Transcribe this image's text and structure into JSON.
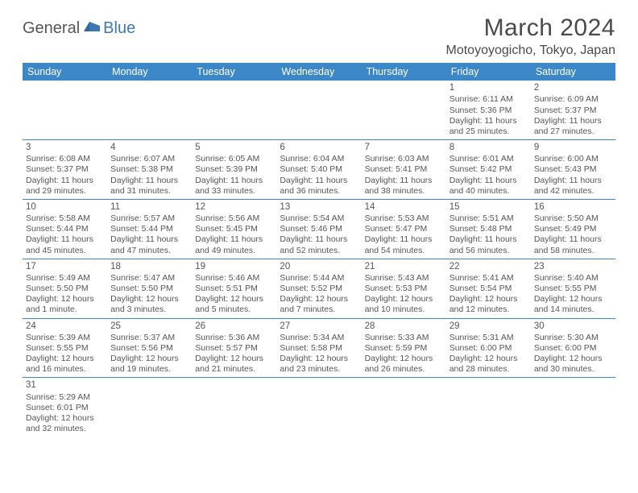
{
  "logo": {
    "text1": "General",
    "text2": "Blue"
  },
  "title": "March 2024",
  "location": "Motoyoyogicho, Tokyo, Japan",
  "colors": {
    "header_bg": "#3c87c7",
    "header_fg": "#ffffff",
    "border": "#3c87c7",
    "text": "#555555",
    "logo_blue": "#3d79b0"
  },
  "day_headers": [
    "Sunday",
    "Monday",
    "Tuesday",
    "Wednesday",
    "Thursday",
    "Friday",
    "Saturday"
  ],
  "weeks": [
    [
      null,
      null,
      null,
      null,
      null,
      {
        "n": "1",
        "sr": "Sunrise: 6:11 AM",
        "ss": "Sunset: 5:36 PM",
        "dl": "Daylight: 11 hours and 25 minutes."
      },
      {
        "n": "2",
        "sr": "Sunrise: 6:09 AM",
        "ss": "Sunset: 5:37 PM",
        "dl": "Daylight: 11 hours and 27 minutes."
      }
    ],
    [
      {
        "n": "3",
        "sr": "Sunrise: 6:08 AM",
        "ss": "Sunset: 5:37 PM",
        "dl": "Daylight: 11 hours and 29 minutes."
      },
      {
        "n": "4",
        "sr": "Sunrise: 6:07 AM",
        "ss": "Sunset: 5:38 PM",
        "dl": "Daylight: 11 hours and 31 minutes."
      },
      {
        "n": "5",
        "sr": "Sunrise: 6:05 AM",
        "ss": "Sunset: 5:39 PM",
        "dl": "Daylight: 11 hours and 33 minutes."
      },
      {
        "n": "6",
        "sr": "Sunrise: 6:04 AM",
        "ss": "Sunset: 5:40 PM",
        "dl": "Daylight: 11 hours and 36 minutes."
      },
      {
        "n": "7",
        "sr": "Sunrise: 6:03 AM",
        "ss": "Sunset: 5:41 PM",
        "dl": "Daylight: 11 hours and 38 minutes."
      },
      {
        "n": "8",
        "sr": "Sunrise: 6:01 AM",
        "ss": "Sunset: 5:42 PM",
        "dl": "Daylight: 11 hours and 40 minutes."
      },
      {
        "n": "9",
        "sr": "Sunrise: 6:00 AM",
        "ss": "Sunset: 5:43 PM",
        "dl": "Daylight: 11 hours and 42 minutes."
      }
    ],
    [
      {
        "n": "10",
        "sr": "Sunrise: 5:58 AM",
        "ss": "Sunset: 5:44 PM",
        "dl": "Daylight: 11 hours and 45 minutes."
      },
      {
        "n": "11",
        "sr": "Sunrise: 5:57 AM",
        "ss": "Sunset: 5:44 PM",
        "dl": "Daylight: 11 hours and 47 minutes."
      },
      {
        "n": "12",
        "sr": "Sunrise: 5:56 AM",
        "ss": "Sunset: 5:45 PM",
        "dl": "Daylight: 11 hours and 49 minutes."
      },
      {
        "n": "13",
        "sr": "Sunrise: 5:54 AM",
        "ss": "Sunset: 5:46 PM",
        "dl": "Daylight: 11 hours and 52 minutes."
      },
      {
        "n": "14",
        "sr": "Sunrise: 5:53 AM",
        "ss": "Sunset: 5:47 PM",
        "dl": "Daylight: 11 hours and 54 minutes."
      },
      {
        "n": "15",
        "sr": "Sunrise: 5:51 AM",
        "ss": "Sunset: 5:48 PM",
        "dl": "Daylight: 11 hours and 56 minutes."
      },
      {
        "n": "16",
        "sr": "Sunrise: 5:50 AM",
        "ss": "Sunset: 5:49 PM",
        "dl": "Daylight: 11 hours and 58 minutes."
      }
    ],
    [
      {
        "n": "17",
        "sr": "Sunrise: 5:49 AM",
        "ss": "Sunset: 5:50 PM",
        "dl": "Daylight: 12 hours and 1 minute."
      },
      {
        "n": "18",
        "sr": "Sunrise: 5:47 AM",
        "ss": "Sunset: 5:50 PM",
        "dl": "Daylight: 12 hours and 3 minutes."
      },
      {
        "n": "19",
        "sr": "Sunrise: 5:46 AM",
        "ss": "Sunset: 5:51 PM",
        "dl": "Daylight: 12 hours and 5 minutes."
      },
      {
        "n": "20",
        "sr": "Sunrise: 5:44 AM",
        "ss": "Sunset: 5:52 PM",
        "dl": "Daylight: 12 hours and 7 minutes."
      },
      {
        "n": "21",
        "sr": "Sunrise: 5:43 AM",
        "ss": "Sunset: 5:53 PM",
        "dl": "Daylight: 12 hours and 10 minutes."
      },
      {
        "n": "22",
        "sr": "Sunrise: 5:41 AM",
        "ss": "Sunset: 5:54 PM",
        "dl": "Daylight: 12 hours and 12 minutes."
      },
      {
        "n": "23",
        "sr": "Sunrise: 5:40 AM",
        "ss": "Sunset: 5:55 PM",
        "dl": "Daylight: 12 hours and 14 minutes."
      }
    ],
    [
      {
        "n": "24",
        "sr": "Sunrise: 5:39 AM",
        "ss": "Sunset: 5:55 PM",
        "dl": "Daylight: 12 hours and 16 minutes."
      },
      {
        "n": "25",
        "sr": "Sunrise: 5:37 AM",
        "ss": "Sunset: 5:56 PM",
        "dl": "Daylight: 12 hours and 19 minutes."
      },
      {
        "n": "26",
        "sr": "Sunrise: 5:36 AM",
        "ss": "Sunset: 5:57 PM",
        "dl": "Daylight: 12 hours and 21 minutes."
      },
      {
        "n": "27",
        "sr": "Sunrise: 5:34 AM",
        "ss": "Sunset: 5:58 PM",
        "dl": "Daylight: 12 hours and 23 minutes."
      },
      {
        "n": "28",
        "sr": "Sunrise: 5:33 AM",
        "ss": "Sunset: 5:59 PM",
        "dl": "Daylight: 12 hours and 26 minutes."
      },
      {
        "n": "29",
        "sr": "Sunrise: 5:31 AM",
        "ss": "Sunset: 6:00 PM",
        "dl": "Daylight: 12 hours and 28 minutes."
      },
      {
        "n": "30",
        "sr": "Sunrise: 5:30 AM",
        "ss": "Sunset: 6:00 PM",
        "dl": "Daylight: 12 hours and 30 minutes."
      }
    ],
    [
      {
        "n": "31",
        "sr": "Sunrise: 5:29 AM",
        "ss": "Sunset: 6:01 PM",
        "dl": "Daylight: 12 hours and 32 minutes."
      },
      null,
      null,
      null,
      null,
      null,
      null
    ]
  ]
}
